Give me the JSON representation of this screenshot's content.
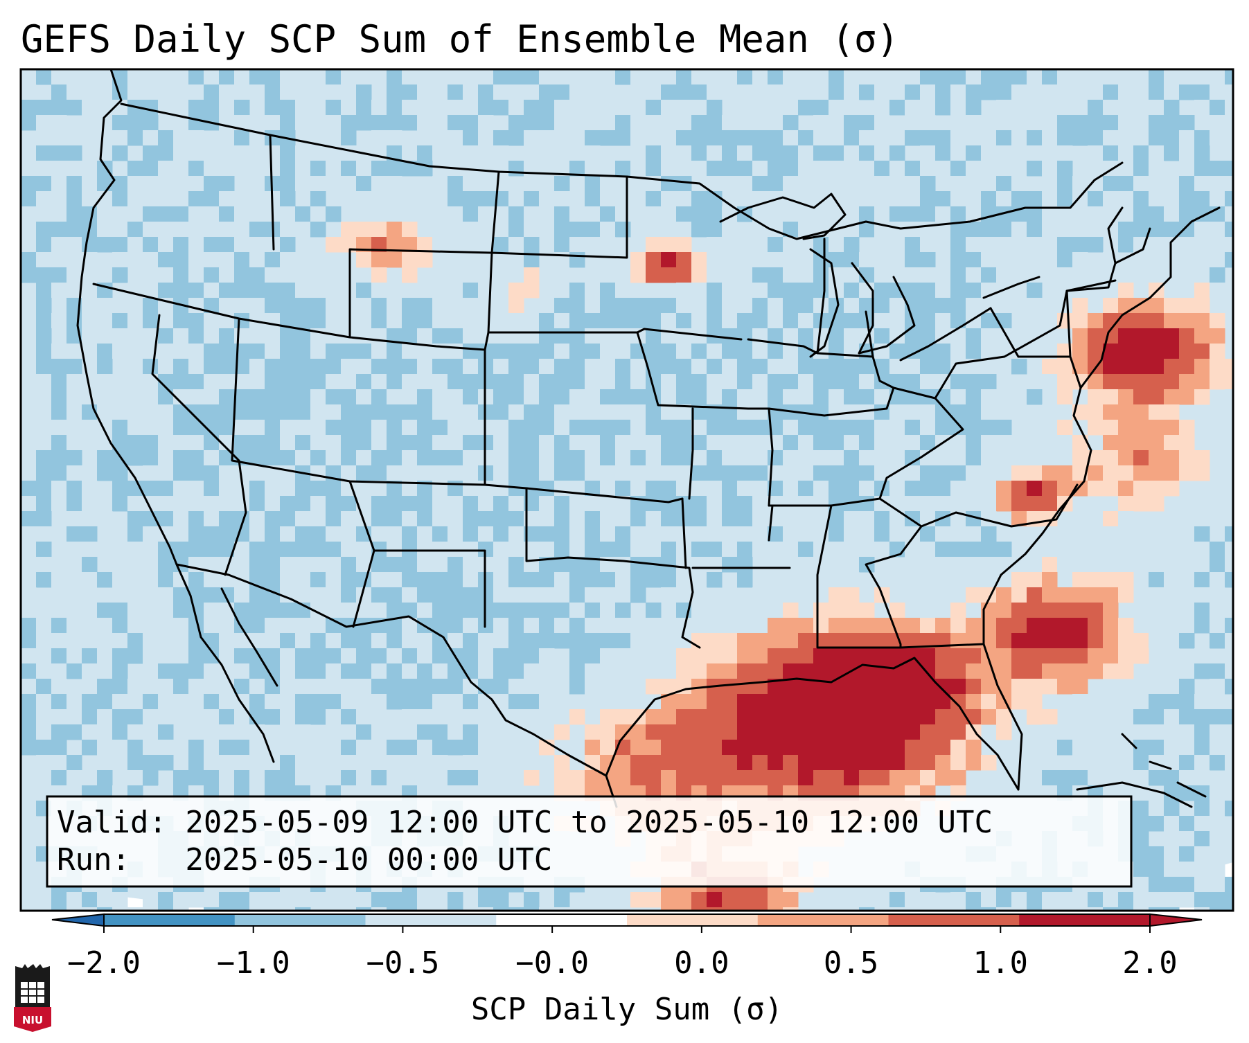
{
  "title": "GEFS Daily SCP Sum of Ensemble Mean (σ)",
  "info_box": {
    "valid_line": "Valid: 2025-05-09 12:00 UTC to 2025-05-10 12:00 UTC",
    "run_line": "Run:   2025-05-10 00:00 UTC"
  },
  "colorbar": {
    "label": "SCP Daily Sum (σ)",
    "ticks": [
      "−2.0",
      "−1.0",
      "−0.5",
      "−0.0",
      "0.0",
      "0.5",
      "1.0",
      "2.0"
    ],
    "colors": [
      "#4393c3",
      "#92c5de",
      "#d1e5f0",
      "#ffffff",
      "#fddbc7",
      "#f4a582",
      "#d6604d",
      "#b2182b"
    ],
    "under_color": "#2166ac",
    "over_color": "#b2182b"
  },
  "logo": {
    "text": "NIU",
    "color": "#c8102e"
  },
  "map": {
    "background_color": "#d1e5f0",
    "features": [
      "coastlines",
      "country borders",
      "state borders"
    ]
  }
}
